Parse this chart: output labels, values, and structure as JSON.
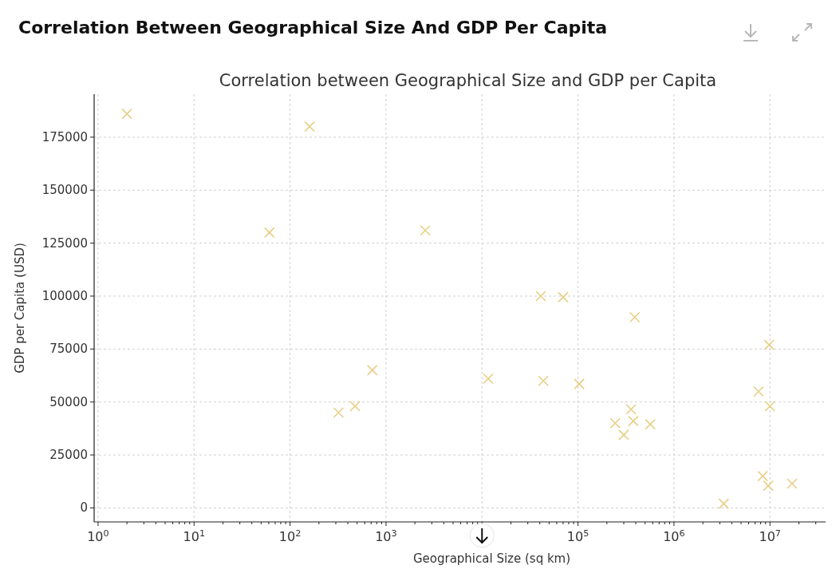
{
  "chart_data": {
    "type": "scatter",
    "title": "Correlation Between Geographical Size And GDP Per Capita",
    "subtitle": "Correlation between Geographical Size and GDP per Capita",
    "xlabel": "Geographical Size (sq km)",
    "ylabel": "GDP per Capita (USD)",
    "log": "x",
    "grid": true,
    "marker": "cross",
    "x": [
      2,
      160,
      61,
      2560,
      320,
      475,
      720,
      11600,
      41000,
      70000,
      43600,
      103000,
      390000,
      244000,
      357000,
      300000,
      377000,
      566000,
      9800000,
      7600000,
      10000000,
      8400000,
      9600000,
      17000000,
      3300000
    ],
    "series": [
      {
        "color": "#e8cf86",
        "values": [
          186000,
          180000,
          130000,
          131000,
          45000,
          48000,
          65000,
          61000,
          100000,
          99500,
          60000,
          58500,
          90000,
          40000,
          46500,
          34500,
          41000,
          39500,
          77000,
          55000,
          48000,
          15000,
          10500,
          11500,
          2000
        ]
      }
    ],
    "xlim": [
      0.91,
      38000000
    ],
    "ylim": [
      -6600,
      195300
    ],
    "xticks": [
      {
        "value": 1,
        "label": "10$^{0}$"
      },
      {
        "value": 10,
        "label": "10$^{1}$"
      },
      {
        "value": 100,
        "label": "10$^{2}$"
      },
      {
        "value": 1000,
        "label": "10$^{3}$"
      },
      {
        "value": 10000,
        "label": null
      },
      {
        "value": 100000,
        "label": "10$^{5}$"
      },
      {
        "value": 1000000,
        "label": "10$^{6}$"
      },
      {
        "value": 10000000,
        "label": "10$^{7}$"
      }
    ],
    "yticks": [
      0,
      25000,
      50000,
      75000,
      100000,
      125000,
      150000,
      175000
    ]
  }
}
